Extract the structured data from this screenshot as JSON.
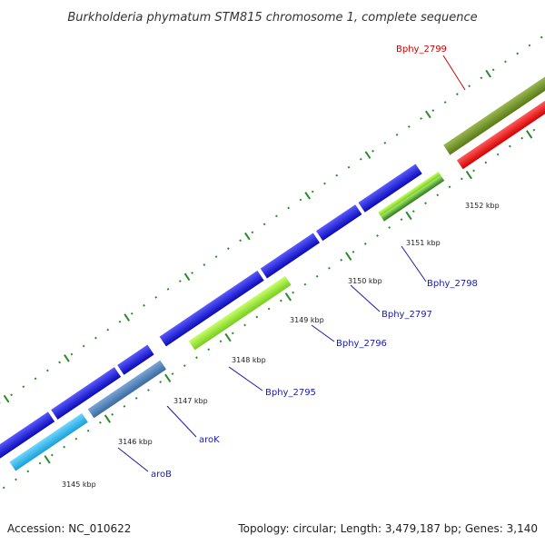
{
  "title": "Burkholderia phymatum STM815 chromosome 1, complete sequence",
  "footer": {
    "accession": "Accession: NC_010622",
    "summary": "Topology: circular; Length: 3,479,187 bp; Genes: 3,140"
  },
  "ticks": [
    "3145 kbp",
    "3146 kbp",
    "3147 kbp",
    "3148 kbp",
    "3149 kbp",
    "3150 kbp",
    "3151 kbp",
    "3152 kbp"
  ],
  "gene_labels": [
    {
      "id": "arob",
      "text": "aroB",
      "color": "#1a1aa6"
    },
    {
      "id": "arok",
      "text": "aroK",
      "color": "#1a1aa6"
    },
    {
      "id": "bphy2795",
      "text": "Bphy_2795",
      "color": "#1a1aa6"
    },
    {
      "id": "bphy2796",
      "text": "Bphy_2796",
      "color": "#1a1aa6"
    },
    {
      "id": "bphy2797",
      "text": "Bphy_2797",
      "color": "#1a1aa6"
    },
    {
      "id": "bphy2798",
      "text": "Bphy_2798",
      "color": "#1a1aa6"
    },
    {
      "id": "bphy2799",
      "text": "Bphy_2799",
      "color": "#cc0000"
    }
  ],
  "colors": {
    "backbone": "#8c8c8c",
    "cds_blue": "#1010dd",
    "arob_fill": "#29b6f0",
    "arok_fill": "#4a7eb8",
    "bphy2795_fill": "#98ee3a",
    "bphy2798_fill": "#3a9a2a",
    "bphy2799_top": "#6b8e23",
    "bphy2799_red": "#ff0000",
    "tick_color": "#2a8a2a"
  }
}
